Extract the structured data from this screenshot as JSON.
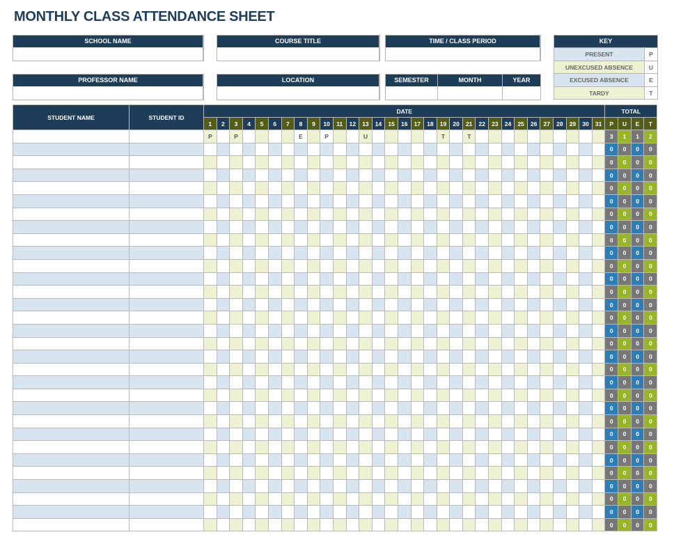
{
  "title": "MONTHLY CLASS ATTENDANCE SHEET",
  "fields": {
    "school_name": "SCHOOL NAME",
    "course_title": "COURSE TITLE",
    "time_period": "TIME / CLASS PERIOD",
    "professor_name": "PROFESSOR NAME",
    "location": "LOCATION",
    "semester": "SEMESTER",
    "month": "MONTH",
    "year": "YEAR"
  },
  "key": {
    "title": "KEY",
    "items": [
      {
        "label": "PRESENT",
        "code": "P"
      },
      {
        "label": "UNEXCUSED ABSENCE",
        "code": "U"
      },
      {
        "label": "EXCUSED ABSENCE",
        "code": "E"
      },
      {
        "label": "TARDY",
        "code": "T"
      }
    ]
  },
  "table": {
    "student_name": "STUDENT NAME",
    "student_id": "STUDENT ID",
    "date": "DATE",
    "total": "TOTAL",
    "total_cols": [
      "P",
      "U",
      "E",
      "T"
    ],
    "days": 31,
    "row_count": 31,
    "rows": [
      {
        "marks": {
          "1": "P",
          "3": "P",
          "8": "E",
          "10": "P",
          "13": "U",
          "19": "T",
          "21": "T"
        },
        "totals": [
          3,
          1,
          1,
          2
        ]
      }
    ],
    "default_totals": [
      0,
      0,
      0,
      0
    ]
  },
  "colors": {
    "navy": "#1e3d59",
    "olive": "#535d17",
    "present_blue": "#d6e5f0",
    "yellow": "#eef2d2",
    "gray": "#777777",
    "green": "#97b526",
    "blue": "#2e7db5"
  }
}
